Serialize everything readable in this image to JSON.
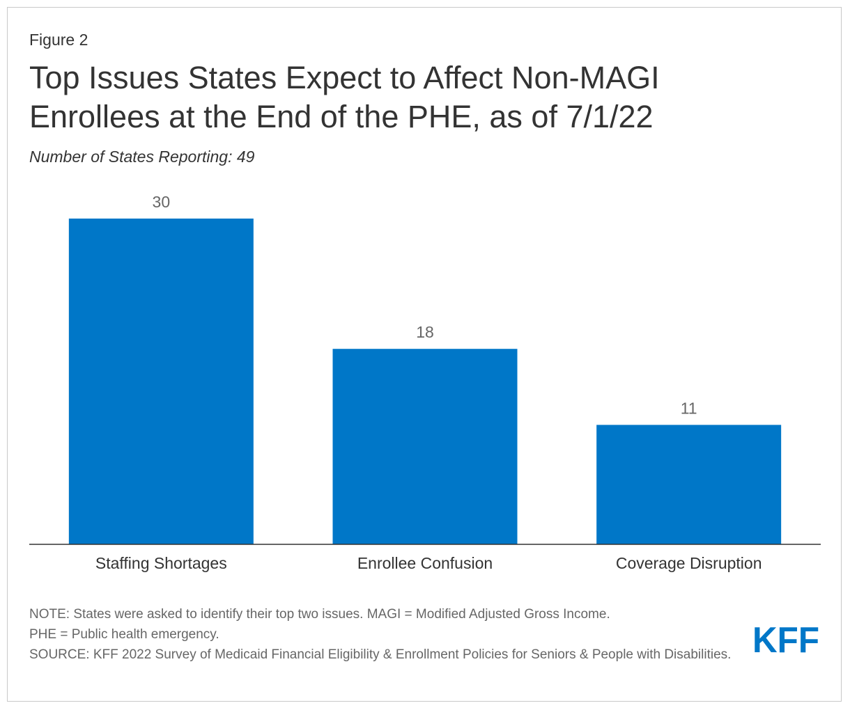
{
  "figure": {
    "label": "Figure 2",
    "title": "Top Issues States Expect to Affect Non-MAGI Enrollees at the End of the PHE, as of 7/1/22",
    "subtitle": "Number of States Reporting: 49"
  },
  "chart_data": {
    "type": "bar",
    "title": "Top Issues States Expect to Affect Non-MAGI Enrollees at the End of the PHE, as of 7/1/22",
    "subtitle": "Number of States Reporting: 49",
    "categories": [
      "Staffing Shortages",
      "Enrollee Confusion",
      "Coverage Disruption"
    ],
    "values": [
      30,
      18,
      11
    ],
    "xlabel": "",
    "ylabel": "",
    "ylim": [
      0,
      30
    ],
    "grid": false,
    "bar_color": "#0077c8"
  },
  "footer": {
    "note_line1": "NOTE: States were asked to identify their top two issues. MAGI = Modified Adjusted Gross Income.",
    "note_line2": "PHE = Public health emergency.",
    "source": "SOURCE: KFF 2022 Survey of Medicaid Financial Eligibility & Enrollment Policies for Seniors & People with Disabilities.",
    "logo_text": "KFF",
    "logo_color": "#0077c8"
  }
}
